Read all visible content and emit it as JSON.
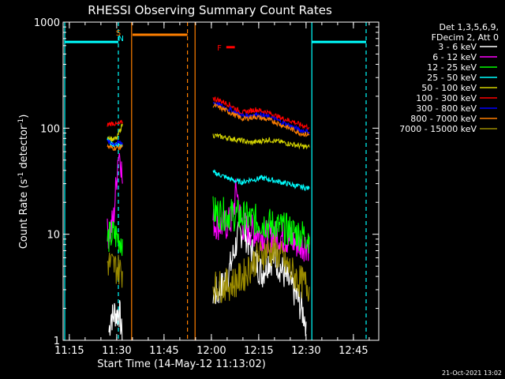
{
  "chart_data": {
    "type": "line",
    "title": "RHESSI Observing Summary Count Rates",
    "xlabel": "Start Time (14-May-12 11:13:02)",
    "ylabel": "Count Rate (s",
    "ylabel_sup1": "-1",
    "ylabel_mid": " detector",
    "ylabel_sup2": "-1",
    "ylabel_end": ")",
    "yscale": "log",
    "ylim": [
      1,
      1000
    ],
    "xlim_minutes": [
      0,
      100
    ],
    "x_ticks": [
      {
        "label": "11:15",
        "minute": 1.97
      },
      {
        "label": "11:30",
        "minute": 16.97
      },
      {
        "label": "11:45",
        "minute": 31.97
      },
      {
        "label": "12:00",
        "minute": 46.97
      },
      {
        "label": "12:15",
        "minute": 61.97
      },
      {
        "label": "12:30",
        "minute": 76.97
      },
      {
        "label": "12:45",
        "minute": 91.97
      }
    ],
    "y_ticks": [
      {
        "label": "1",
        "value": 1
      },
      {
        "label": "10",
        "value": 10
      },
      {
        "label": "100",
        "value": 100
      },
      {
        "label": "1000",
        "value": 1000
      }
    ],
    "legend": {
      "header": [
        "Det 1,3,5,6,9,",
        "FDecim 2, Att 0"
      ],
      "placement": "right"
    },
    "series": [
      {
        "name": "3 - 6 keV",
        "color": "#ffffff",
        "segments": [
          {
            "x": [
              14.5,
              15.2,
              15.8,
              16.4,
              17.0,
              17.6,
              18.2,
              18.7
            ],
            "y": [
              1.2,
              1.8,
              1.6,
              1.9,
              1.7,
              2.0,
              1.5,
              1.0
            ]
          },
          {
            "x": [
              47.5,
              49,
              51,
              53,
              55,
              57,
              59,
              61,
              63,
              65,
              67,
              69,
              71,
              73,
              75,
              77
            ],
            "y": [
              2.8,
              2.8,
              3.4,
              4.9,
              8.6,
              11.2,
              8.2,
              5.5,
              4.3,
              5.7,
              6.0,
              4.8,
              3.7,
              3.0,
              2.2,
              1.5
            ]
          }
        ]
      },
      {
        "name": "6 - 12 keV",
        "color": "#ff00ff",
        "segments": [
          {
            "x": [
              14.0,
              15.0,
              16.0,
              16.8,
              17.5,
              18.2,
              18.8
            ],
            "y": [
              10,
              11,
              14,
              30,
              60,
              55,
              30
            ]
          },
          {
            "x": [
              47.5,
              49,
              51,
              53,
              54,
              55,
              56,
              57,
              59,
              61,
              63,
              65,
              67,
              69,
              71,
              73,
              75,
              78
            ],
            "y": [
              13,
              12.5,
              12,
              13,
              17,
              28,
              15,
              12,
              11,
              10.5,
              10,
              9.5,
              9.5,
              9.5,
              9,
              8.5,
              8,
              8
            ]
          }
        ]
      },
      {
        "name": "12 - 25 keV",
        "color": "#00ff00",
        "segments": [
          {
            "x": [
              14.0,
              15.0,
              16.0,
              17.0,
              18.0,
              18.8
            ],
            "y": [
              9,
              9.5,
              10,
              9.5,
              9,
              9
            ]
          },
          {
            "x": [
              47.5,
              49,
              51,
              53,
              55,
              57,
              59,
              61,
              63,
              65,
              67,
              69,
              71,
              73,
              75,
              78
            ],
            "y": [
              16,
              16,
              15.5,
              15.5,
              15,
              14.5,
              14,
              13.5,
              13,
              12.5,
              12,
              11.5,
              11,
              10.5,
              10,
              9.5
            ]
          }
        ]
      },
      {
        "name": "25 - 50 keV",
        "color": "#00ffff",
        "segments": [
          {
            "x": [
              14.0,
              15.0,
              16.0,
              17.0,
              18.0,
              18.8
            ],
            "y": [
              80,
              72,
              70,
              70,
              68,
              70
            ]
          },
          {
            "x": [
              47.5,
              49,
              51,
              53,
              55,
              57,
              59,
              61,
              63,
              65,
              67,
              69,
              71,
              73,
              75,
              78
            ],
            "y": [
              38,
              37,
              35,
              33,
              31.5,
              31,
              32.5,
              33,
              34,
              33,
              32,
              31,
              30,
              29,
              28,
              27
            ]
          }
        ]
      },
      {
        "name": "50 - 100 keV",
        "color": "#d2d200",
        "segments": [
          {
            "x": [
              14.0,
              15.0,
              16.0,
              17.0,
              18.0,
              18.8
            ],
            "y": [
              85,
              80,
              78,
              80,
              95,
              110
            ]
          },
          {
            "x": [
              47.5,
              49,
              51,
              53,
              55,
              57,
              59,
              61,
              63,
              65,
              67,
              69,
              71,
              73,
              75,
              78
            ],
            "y": [
              86,
              84,
              82,
              80,
              78,
              76,
              73,
              74,
              76,
              78,
              76,
              74,
              72,
              70,
              68,
              66
            ]
          }
        ]
      },
      {
        "name": "100 - 300 keV",
        "color": "#ff0000",
        "segments": [
          {
            "x": [
              14.0,
              15.0,
              16.0,
              17.0,
              18.0,
              18.8
            ],
            "y": [
              108,
              110,
              112,
              108,
              110,
              115
            ]
          },
          {
            "x": [
              47.5,
              49,
              51,
              53,
              55,
              57,
              59,
              61,
              63,
              65,
              67,
              69,
              71,
              73,
              75,
              78
            ],
            "y": [
              192,
              185,
              175,
              165,
              150,
              140,
              145,
              150,
              145,
              140,
              132,
              125,
              120,
              115,
              108,
              102
            ]
          }
        ]
      },
      {
        "name": "300 - 800 keV",
        "color": "#0000ff",
        "segments": [
          {
            "x": [
              14.0,
              15.0,
              16.0,
              17.0,
              18.0,
              18.8
            ],
            "y": [
              74,
              73,
              72,
              72,
              73,
              73
            ]
          },
          {
            "x": [
              47.5,
              49,
              51,
              53,
              55,
              57,
              59,
              61,
              63,
              65,
              67,
              69,
              71,
              73,
              75,
              78
            ],
            "y": [
              175,
              168,
              158,
              148,
              138,
              130,
              132,
              135,
              132,
              128,
              122,
              115,
              108,
              102,
              96,
              92
            ]
          }
        ]
      },
      {
        "name": "800 - 7000 keV",
        "color": "#ff7f00",
        "segments": [
          {
            "x": [
              14.0,
              15.0,
              16.0,
              17.0,
              18.0,
              18.8
            ],
            "y": [
              67,
              66,
              65,
              65,
              66,
              67
            ]
          },
          {
            "x": [
              47.5,
              49,
              51,
              53,
              55,
              57,
              59,
              61,
              63,
              65,
              67,
              69,
              71,
              73,
              75,
              78
            ],
            "y": [
              165,
              158,
              150,
              140,
              130,
              122,
              125,
              128,
              124,
              120,
              115,
              108,
              102,
              96,
              90,
              86
            ]
          }
        ]
      },
      {
        "name": "7000 - 15000 keV",
        "color": "#9a8a00",
        "segments": [
          {
            "x": [
              14.0,
              15.0,
              16.0,
              17.0,
              18.0,
              18.8
            ],
            "y": [
              5.5,
              5.2,
              5.0,
              4.8,
              4.6,
              4.5
            ]
          },
          {
            "x": [
              47.5,
              49,
              51,
              53,
              55,
              57,
              59,
              61,
              63,
              65,
              67,
              69,
              71,
              73,
              75,
              78
            ],
            "y": [
              3.2,
              3.2,
              3.3,
              3.4,
              3.6,
              4.0,
              4.8,
              5.8,
              6.5,
              7.0,
              6.8,
              6.2,
              5.0,
              4.2,
              3.6,
              3.2
            ]
          }
        ]
      }
    ],
    "markers": [
      {
        "label": "S",
        "color": "#ff7f00",
        "minute": 17.5
      },
      {
        "label": "N",
        "color": "#00ffff",
        "minute": 18.3
      },
      {
        "label": "F",
        "color": "#ff0000",
        "minute": 49.5,
        "value": 580
      }
    ],
    "bars": [
      {
        "name": "night",
        "color": "#00ffff",
        "x_start": 0.5,
        "x_end": 17.5,
        "value": 650
      },
      {
        "name": "night",
        "color": "#00ffff",
        "x_start": 78.8,
        "x_end": 96.0,
        "value": 650
      },
      {
        "name": "saa",
        "color": "#ff7f00",
        "x_start": 22.0,
        "x_end": 39.4,
        "value": 760
      },
      {
        "name": "flare",
        "color": "#ff0000",
        "x_start": 51.7,
        "x_end": 54.4,
        "value": 580
      }
    ],
    "vlines": [
      {
        "color": "#00ffff",
        "style": "solid",
        "minute": 0.5
      },
      {
        "color": "#00ffff",
        "style": "dashed",
        "minute": 17.5
      },
      {
        "color": "#ff7f00",
        "style": "solid",
        "minute": 21.7
      },
      {
        "color": "#ff7f00",
        "style": "dashed",
        "minute": 39.4
      },
      {
        "color": "#ff7f00",
        "style": "solid",
        "minute": 41.8
      },
      {
        "color": "#00ffff",
        "style": "solid",
        "minute": 78.8
      },
      {
        "color": "#00ffff",
        "style": "dashed",
        "minute": 96.0
      }
    ],
    "grid": false
  },
  "footer": {
    "timestamp": "21-Oct-2021 13:02"
  }
}
